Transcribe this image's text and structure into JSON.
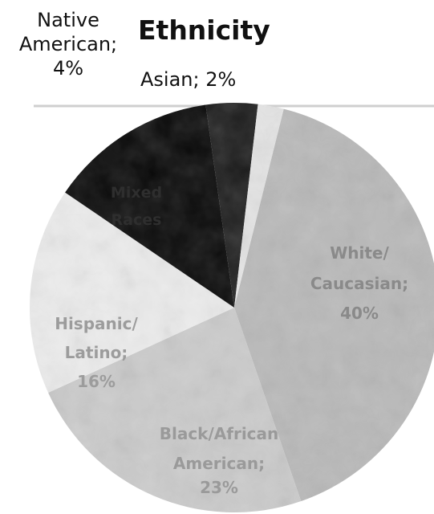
{
  "chart_data": {
    "type": "pie",
    "title": "Ethnicity",
    "slices": [
      {
        "label": "White/ Caucasian",
        "value": 40,
        "label_text": "White/ Caucasian; 40%",
        "color": "#b9b9b9"
      },
      {
        "label": "Black/African American",
        "value": 23,
        "label_text": "Black/African American; 23%",
        "color": "#cbcbcb"
      },
      {
        "label": "Hispanic/ Latino",
        "value": 16,
        "label_text": "Hispanic/ Latino; 16%",
        "color": "#ececec"
      },
      {
        "label": "Mixed Races",
        "value": 13,
        "label_text": "Mixed Races",
        "color": "#0a0a0a"
      },
      {
        "label": "Native American",
        "value": 4,
        "label_text": "Native American; 4%",
        "color": "#1e1e1e"
      },
      {
        "label": "Asian",
        "value": 2,
        "label_text": "Asian; 2%",
        "color": "#e4e4e4"
      }
    ],
    "outside_labels": {
      "native": [
        "Native",
        "American;",
        "4%"
      ],
      "asian": "Asian; 2%"
    },
    "inside_labels": {
      "white": [
        "White/",
        "Caucasian;",
        "40%"
      ],
      "black": [
        "Black/African",
        "American;",
        "23%"
      ],
      "hispanic": [
        "Hispanic/",
        "Latino;",
        "16%"
      ],
      "mixed": [
        "Mixed",
        "Races"
      ]
    }
  }
}
